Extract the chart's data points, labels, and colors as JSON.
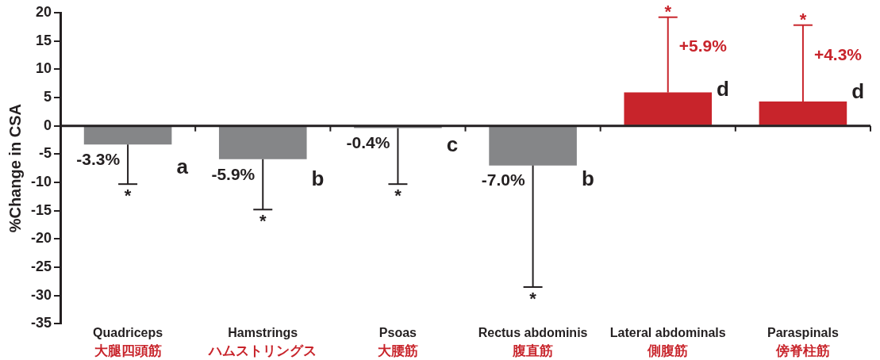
{
  "chart_data": {
    "type": "bar",
    "ylabel": "%Change in CSA",
    "categories": [
      "Quadriceps\n大腿四頭筋",
      "Hamstrings\nハムストリングス",
      "Psoas\n大腰筋",
      "Rectus abdominis\n腹直筋",
      "Lateral abdominals\n側腹筋",
      "Paraspinals\n傍脊柱筋"
    ],
    "values": [
      -3.3,
      -5.9,
      -0.4,
      -7.0,
      5.9,
      4.3
    ],
    "colors": [
      "#858688",
      "#858688",
      "#858688",
      "#858688",
      "#c8242b",
      "#c8242b"
    ],
    "errors": [
      [
        -10.3,
        -3.3
      ],
      [
        -14.8,
        -5.9
      ],
      [
        -10.3,
        -0.4
      ],
      [
        -28.5,
        -7.0
      ],
      [
        5.9,
        19.2
      ],
      [
        4.3,
        17.8
      ]
    ],
    "value_labels": [
      "-3.3%",
      "-5.9%",
      "-0.4%",
      "-7.0%",
      "+5.9%",
      "+4.3%"
    ],
    "annotations": [
      {
        "text": "*",
        "x": "Quadriceps\n大腿四頭筋",
        "y": -10.3
      },
      {
        "text": "*",
        "x": "Hamstrings\nハムストリングス",
        "y": -14.8
      },
      {
        "text": "*",
        "x": "Psoas\n大腰筋",
        "y": -10.3
      },
      {
        "text": "*",
        "x": "Rectus abdominis\n腹直筋",
        "y": -28.5
      },
      {
        "text": "*",
        "x": "Lateral abdominals\n側腹筋",
        "y": 19.2
      },
      {
        "text": "*",
        "x": "Paraspinals\n傍脊柱筋",
        "y": 17.8
      },
      {
        "text": "a",
        "x": "Quadriceps\n大腿四頭筋",
        "y": -7.5
      },
      {
        "text": "b",
        "x": "Hamstrings\nハムストリングス",
        "y": -9.5
      },
      {
        "text": "c",
        "x": "Psoas\n大腰筋",
        "y": -3.5
      },
      {
        "text": "b",
        "x": "Rectus abdominis\n腹直筋",
        "y": -9.5
      },
      {
        "text": "d",
        "x": "Lateral abdominals\n側腹筋",
        "y": 6.3
      },
      {
        "text": "d",
        "x": "Paraspinals\n傍脊柱筋",
        "y": 5.8
      }
    ],
    "ylim": [
      -35,
      20
    ],
    "yticks": [
      -35,
      -30,
      -25,
      -20,
      -15,
      -10,
      -5,
      0,
      5,
      10,
      15,
      20
    ],
    "ref_lines": [
      {
        "axis": "y",
        "value": 0
      }
    ],
    "grid": false,
    "legend": false
  }
}
